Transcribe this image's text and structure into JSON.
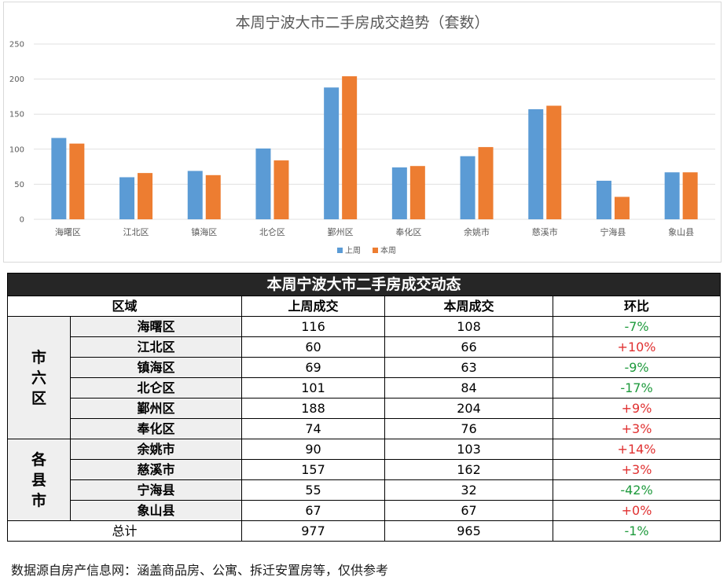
{
  "chart_data": {
    "type": "bar",
    "title": "本周宁波大市二手房成交趋势（套数）",
    "categories": [
      "海曙区",
      "江北区",
      "镇海区",
      "北仑区",
      "鄞州区",
      "奉化区",
      "余姚市",
      "慈溪市",
      "宁海县",
      "象山县"
    ],
    "series": [
      {
        "name": "上周",
        "values": [
          116,
          60,
          69,
          101,
          188,
          74,
          90,
          157,
          55,
          67
        ],
        "color": "#5b9bd5"
      },
      {
        "name": "本周",
        "values": [
          108,
          66,
          63,
          84,
          204,
          76,
          103,
          162,
          32,
          67
        ],
        "color": "#ed7d31"
      }
    ],
    "ylim": [
      0,
      250
    ],
    "yticks": [
      0,
      50,
      100,
      150,
      200,
      250
    ],
    "grid": true,
    "legend": "bottom"
  },
  "table": {
    "title": "本周宁波大市二手房成交动态",
    "headers": {
      "region": "区域",
      "last_week": "上周成交",
      "this_week": "本周成交",
      "change": "环比"
    },
    "groups": [
      {
        "label": "市\n六\n区",
        "rows": [
          {
            "region": "海曙区",
            "last": "116",
            "this": "108",
            "change": "-7%"
          },
          {
            "region": "江北区",
            "last": "60",
            "this": "66",
            "change": "+10%"
          },
          {
            "region": "镇海区",
            "last": "69",
            "this": "63",
            "change": "-9%"
          },
          {
            "region": "北仑区",
            "last": "101",
            "this": "84",
            "change": "-17%"
          },
          {
            "region": "鄞州区",
            "last": "188",
            "this": "204",
            "change": "+9%"
          },
          {
            "region": "奉化区",
            "last": "74",
            "this": "76",
            "change": "+3%"
          }
        ]
      },
      {
        "label": "各\n县\n市",
        "rows": [
          {
            "region": "余姚市",
            "last": "90",
            "this": "103",
            "change": "+14%"
          },
          {
            "region": "慈溪市",
            "last": "157",
            "this": "162",
            "change": "+3%"
          },
          {
            "region": "宁海县",
            "last": "55",
            "this": "32",
            "change": "-42%"
          },
          {
            "region": "象山县",
            "last": "67",
            "this": "67",
            "change": "+0%"
          }
        ]
      }
    ],
    "total": {
      "label": "总计",
      "last": "977",
      "this": "965",
      "change": "-1%"
    },
    "colors": {
      "up": "#e03030",
      "down": "#1e9a3c"
    }
  },
  "footnote": "数据源自房产信息网：涵盖商品房、公寓、拆迁安置房等，仅供参考"
}
